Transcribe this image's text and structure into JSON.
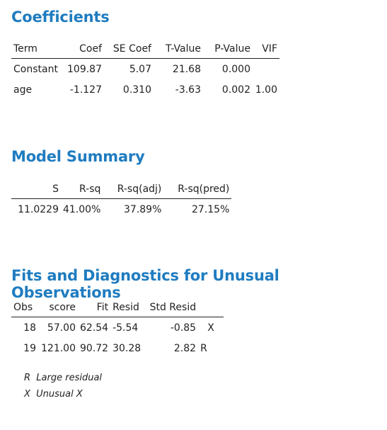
{
  "coefficients": {
    "title": "Coefficients",
    "headers": [
      "Term",
      "Coef",
      "SE Coef",
      "T-Value",
      "P-Value",
      "VIF"
    ],
    "rows": [
      [
        "Constant",
        "109.87",
        "5.07",
        "21.68",
        "0.000",
        ""
      ],
      [
        "age",
        "-1.127",
        "0.310",
        "-3.63",
        "0.002",
        "1.00"
      ]
    ]
  },
  "model_summary": {
    "title": "Model Summary",
    "headers": [
      "S",
      "R-sq",
      "R-sq(adj)",
      "R-sq(pred)"
    ],
    "rows": [
      [
        "11.0229",
        "41.00%",
        "37.89%",
        "27.15%"
      ]
    ]
  },
  "unusual": {
    "title": "Fits and Diagnostics for Unusual Observations",
    "headers": [
      "Obs",
      "score",
      "Fit",
      "Resid",
      "Std Resid",
      ""
    ],
    "rows": [
      [
        "18",
        "57.00",
        "62.54",
        "-5.54",
        "-0.85",
        "X"
      ],
      [
        "19",
        "121.00",
        "90.72",
        "30.28",
        "2.82",
        "R"
      ]
    ],
    "notes": [
      "R  Large residual",
      "X  Unusual X"
    ]
  }
}
